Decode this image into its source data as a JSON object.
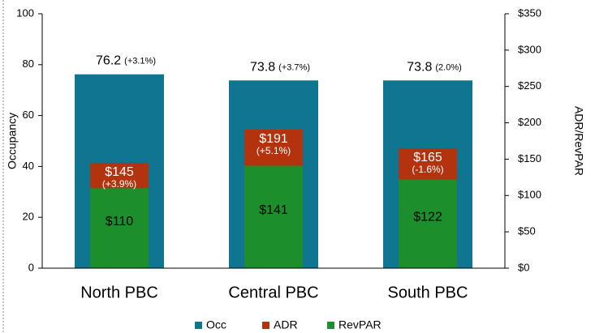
{
  "chart_data": {
    "type": "bar",
    "categories": [
      "North PBC",
      "Central PBC",
      "South PBC"
    ],
    "y_label": "Occupancy",
    "y2_label": "ADR/RevPAR",
    "series": [
      {
        "name": "Occ",
        "color": "#0f7590",
        "values": [
          76.2,
          73.8,
          73.8
        ],
        "change_labels": [
          "(+3.1%)",
          "(+3.7%)",
          "(2.0%)"
        ]
      },
      {
        "name": "ADR",
        "color": "#b3330f",
        "axis": "y2",
        "values": [
          145,
          191,
          165
        ],
        "value_labels": [
          "$145",
          "$191",
          "$165"
        ],
        "change_labels": [
          "(+3.9%)",
          "(+5.1%)",
          "(-1.6%)"
        ]
      },
      {
        "name": "RevPAR",
        "color": "#1c8e2c",
        "axis": "y2",
        "values": [
          110,
          141,
          122
        ],
        "value_labels": [
          "$110",
          "$141",
          "$122"
        ]
      }
    ],
    "ylim": [
      0,
      100
    ],
    "yticks": [
      0,
      20,
      40,
      60,
      80,
      100
    ],
    "y2lim": [
      0,
      350
    ],
    "y2ticks": [
      {
        "value": 0,
        "label": "$0"
      },
      {
        "value": 50,
        "label": "$50"
      },
      {
        "value": 100,
        "label": "$100"
      },
      {
        "value": 150,
        "label": "$150"
      },
      {
        "value": 200,
        "label": "$200"
      },
      {
        "value": 250,
        "label": "$250"
      },
      {
        "value": 300,
        "label": "$300"
      },
      {
        "value": 350,
        "label": "$350"
      }
    ],
    "legend": "bottom"
  }
}
